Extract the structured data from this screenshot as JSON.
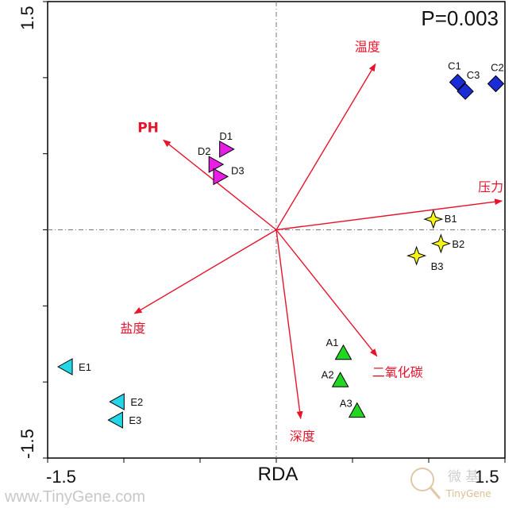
{
  "chart_data": {
    "type": "scatter",
    "title": "",
    "xlabel": "RDA",
    "ylabel": "",
    "xlim": [
      -1.5,
      1.5
    ],
    "ylim": [
      -1.5,
      1.5
    ],
    "x_tick_labels": [
      "-1.5",
      "1.5"
    ],
    "y_tick_labels": [
      "1.5",
      "-1.5"
    ],
    "annotation": "P=0.003",
    "reference_lines": {
      "x": 0,
      "y": 0,
      "style": "dash-dot"
    },
    "arrows": [
      {
        "label": "温度",
        "x": 0.65,
        "y": 1.09,
        "color": "#e8142c"
      },
      {
        "label": "PH",
        "x": -0.74,
        "y": 0.59,
        "color": "#e8142c",
        "bold": true
      },
      {
        "label": "压力",
        "x": 1.48,
        "y": 0.19,
        "color": "#e8142c"
      },
      {
        "label": "盐度",
        "x": -0.93,
        "y": -0.55,
        "color": "#e8142c"
      },
      {
        "label": "二氧化碳",
        "x": 0.66,
        "y": -0.83,
        "color": "#e8142c"
      },
      {
        "label": "深度",
        "x": 0.16,
        "y": -1.24,
        "color": "#e8142c"
      }
    ],
    "series": [
      {
        "marker": "diamond",
        "color": "#1a2cd6",
        "points": [
          {
            "label": "C1",
            "x": 1.19,
            "y": 0.97
          },
          {
            "label": "C3",
            "x": 1.24,
            "y": 0.91
          },
          {
            "label": "C2",
            "x": 1.44,
            "y": 0.96
          }
        ]
      },
      {
        "marker": "triangle-right",
        "color": "#e61ee6",
        "points": [
          {
            "label": "D1",
            "x": -0.33,
            "y": 0.53
          },
          {
            "label": "D2",
            "x": -0.4,
            "y": 0.43
          },
          {
            "label": "D3",
            "x": -0.37,
            "y": 0.35
          }
        ]
      },
      {
        "marker": "star",
        "color": "#f5f516",
        "points": [
          {
            "label": "B1",
            "x": 1.03,
            "y": 0.07
          },
          {
            "label": "B2",
            "x": 1.08,
            "y": -0.09
          },
          {
            "label": "B3",
            "x": 0.92,
            "y": -0.17
          }
        ]
      },
      {
        "marker": "triangle-up",
        "color": "#22d622",
        "points": [
          {
            "label": "A1",
            "x": 0.44,
            "y": -0.81
          },
          {
            "label": "A2",
            "x": 0.42,
            "y": -0.99
          },
          {
            "label": "A3",
            "x": 0.53,
            "y": -1.19
          }
        ]
      },
      {
        "marker": "triangle-left",
        "color": "#22d8e8",
        "points": [
          {
            "label": "E1",
            "x": -1.38,
            "y": -0.9
          },
          {
            "label": "E2",
            "x": -1.04,
            "y": -1.13
          },
          {
            "label": "E3",
            "x": -1.05,
            "y": -1.25
          }
        ]
      }
    ]
  },
  "watermarks": {
    "left_text": "www.TinyGene.com",
    "logo_cn": "微 基",
    "logo_en": "TinyGene"
  }
}
